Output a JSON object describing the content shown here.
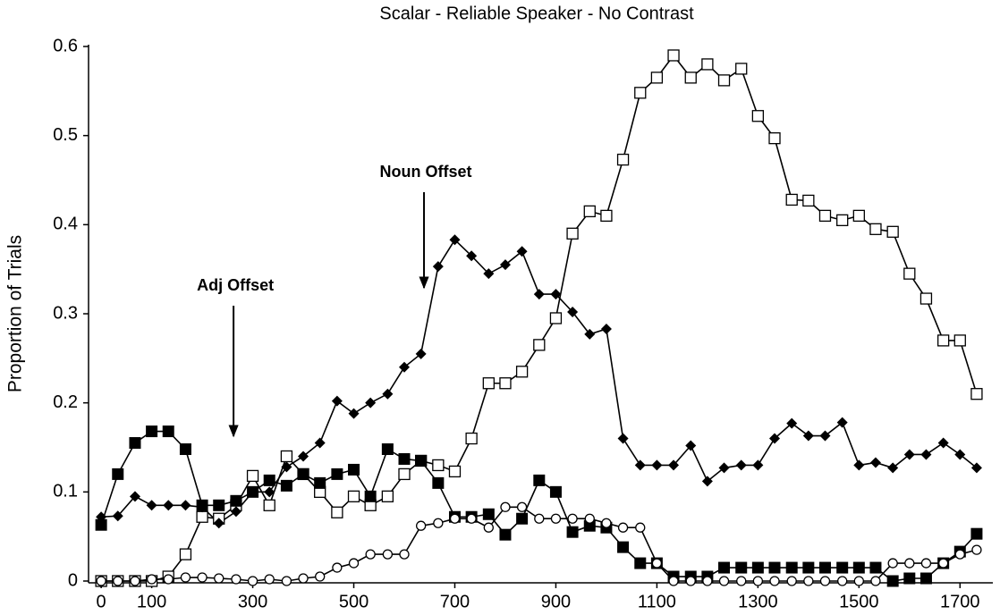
{
  "chart_data": {
    "type": "line",
    "title": "Scalar - Reliable Speaker - No Contrast",
    "y_label": "Proportion of Trials",
    "xlim": [
      -25,
      1765
    ],
    "ylim": [
      0,
      0.6
    ],
    "xticks": [
      0,
      100,
      300,
      500,
      700,
      900,
      1100,
      1300,
      1500,
      1700
    ],
    "yticks": [
      0,
      0.1,
      0.2,
      0.3,
      0.4,
      0.5,
      0.6
    ],
    "grid": false,
    "x": [
      0,
      33,
      67,
      100,
      133,
      167,
      200,
      233,
      267,
      300,
      333,
      367,
      400,
      433,
      467,
      500,
      533,
      567,
      600,
      633,
      667,
      700,
      733,
      767,
      800,
      833,
      867,
      900,
      933,
      967,
      1000,
      1033,
      1067,
      1100,
      1133,
      1167,
      1200,
      1233,
      1267,
      1300,
      1333,
      1367,
      1400,
      1433,
      1467,
      1500,
      1533,
      1567,
      1600,
      1633,
      1667,
      1700,
      1733
    ],
    "series": [
      {
        "color": "#000000",
        "marker": "open-square",
        "values": [
          0,
          0,
          0,
          0,
          0.005,
          0.03,
          0.072,
          0.07,
          0.085,
          0.118,
          0.085,
          0.14,
          0.12,
          0.1,
          0.077,
          0.095,
          0.085,
          0.095,
          0.12,
          0.135,
          0.13,
          0.123,
          0.16,
          0.222,
          0.222,
          0.235,
          0.265,
          0.295,
          0.39,
          0.415,
          0.41,
          0.473,
          0.548,
          0.565,
          0.59,
          0.565,
          0.58,
          0.562,
          0.575,
          0.522,
          0.497,
          0.428,
          0.427,
          0.41,
          0.405,
          0.41,
          0.395,
          0.392,
          0.345,
          0.317,
          0.27,
          0.27,
          0.21
        ]
      },
      {
        "color": "#000000",
        "marker": "diamond",
        "values": [
          0.072,
          0.073,
          0.095,
          0.085,
          0.085,
          0.085,
          0.083,
          0.065,
          0.078,
          0.1,
          0.1,
          0.128,
          0.14,
          0.155,
          0.202,
          0.188,
          0.2,
          0.21,
          0.24,
          0.255,
          0.353,
          0.383,
          0.365,
          0.345,
          0.355,
          0.37,
          0.322,
          0.322,
          0.302,
          0.277,
          0.283,
          0.16,
          0.13,
          0.13,
          0.13,
          0.152,
          0.112,
          0.127,
          0.13,
          0.13,
          0.16,
          0.177,
          0.163,
          0.163,
          0.178,
          0.13,
          0.133,
          0.127,
          0.142,
          0.142,
          0.155,
          0.142,
          0.127
        ]
      },
      {
        "color": "#000000",
        "marker": "filled-square",
        "values": [
          0.063,
          0.12,
          0.155,
          0.168,
          0.168,
          0.148,
          0.085,
          0.085,
          0.09,
          0.1,
          0.113,
          0.107,
          0.12,
          0.11,
          0.12,
          0.125,
          0.095,
          0.148,
          0.137,
          0.135,
          0.11,
          0.072,
          0.072,
          0.075,
          0.052,
          0.07,
          0.113,
          0.1,
          0.055,
          0.062,
          0.06,
          0.038,
          0.02,
          0.02,
          0.005,
          0.005,
          0.005,
          0.015,
          0.015,
          0.015,
          0.015,
          0.015,
          0.015,
          0.015,
          0.015,
          0.015,
          0.015,
          0,
          0.003,
          0.003,
          0.02,
          0.033,
          0.053
        ]
      },
      {
        "color": "#000000",
        "marker": "open-circle",
        "values": [
          0,
          0,
          0,
          0.002,
          0.002,
          0.004,
          0.004,
          0.003,
          0.002,
          0,
          0.002,
          0,
          0.003,
          0.005,
          0.015,
          0.02,
          0.03,
          0.03,
          0.03,
          0.062,
          0.065,
          0.07,
          0.07,
          0.06,
          0.083,
          0.083,
          0.07,
          0.07,
          0.07,
          0.07,
          0.065,
          0.06,
          0.06,
          0.02,
          0,
          0,
          0,
          0,
          0,
          0,
          0,
          0,
          0,
          0,
          0,
          0,
          0,
          0.02,
          0.02,
          0.02,
          0.02,
          0.03,
          0.035
        ]
      }
    ],
    "annotations": [
      {
        "text": "Adj Offset",
        "x": 262
      },
      {
        "text": "Noun Offset",
        "x": 639
      }
    ]
  }
}
